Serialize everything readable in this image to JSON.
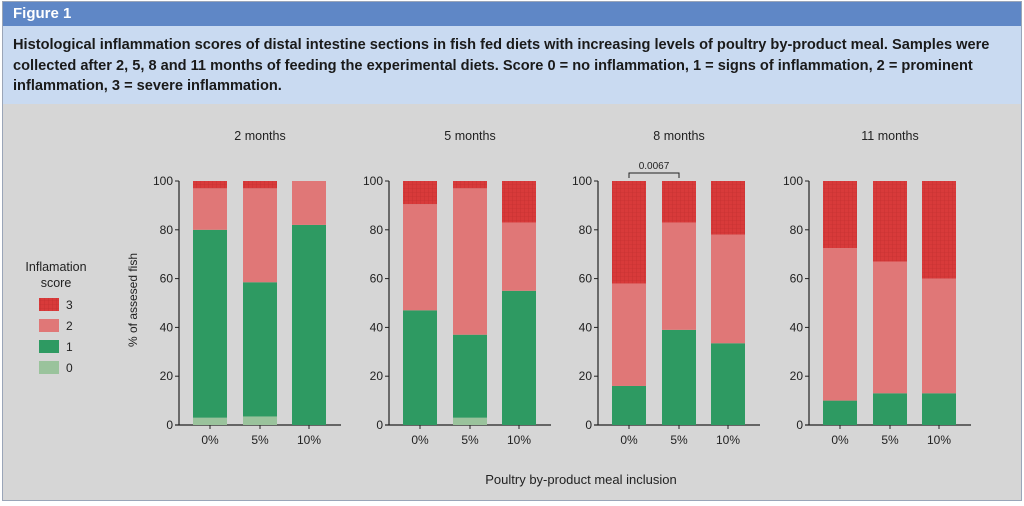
{
  "header": {
    "title": "Figure 1"
  },
  "caption": "Histological inflammation scores of distal intestine sections in fish fed diets with increasing levels of poultry by-product meal. Samples were collected after 2, 5, 8 and 11 months of feeding the experimental diets. Score 0 = no inflammation, 1 = signs of inflammation, 2 = prominent inflammation, 3 = severe inflammation.",
  "colors": {
    "score0": "#9ac39c",
    "score1": "#2e9a62",
    "score2": "#e07777",
    "score3": "#d83a3a",
    "axis": "#222222"
  },
  "legend": {
    "title_line1": "Inflamation",
    "title_line2": "score",
    "items": [
      {
        "label": "3",
        "key": "score3"
      },
      {
        "label": "2",
        "key": "score2"
      },
      {
        "label": "1",
        "key": "score1"
      },
      {
        "label": "0",
        "key": "score0"
      }
    ]
  },
  "chart_data": {
    "type": "bar",
    "stacked": true,
    "ylabel": "% of assesed fish",
    "xlabel": "Poultry by-product meal inclusion",
    "ylim": [
      0,
      100
    ],
    "yticks": [
      0,
      20,
      40,
      60,
      80,
      100
    ],
    "categories": [
      "0%",
      "5%",
      "10%"
    ],
    "series_names": [
      "0",
      "1",
      "2",
      "3"
    ],
    "panels": [
      {
        "title": "2 months",
        "series": [
          {
            "name": "0",
            "values": [
              3,
              3.5,
              0
            ]
          },
          {
            "name": "1",
            "values": [
              77,
              55,
              82
            ]
          },
          {
            "name": "2",
            "values": [
              17,
              38.5,
              18
            ]
          },
          {
            "name": "3",
            "values": [
              3,
              3,
              0
            ]
          }
        ]
      },
      {
        "title": "5 months",
        "series": [
          {
            "name": "0",
            "values": [
              0,
              3,
              0
            ]
          },
          {
            "name": "1",
            "values": [
              47,
              34,
              55
            ]
          },
          {
            "name": "2",
            "values": [
              43.5,
              60,
              28
            ]
          },
          {
            "name": "3",
            "values": [
              9.5,
              3,
              17
            ]
          }
        ]
      },
      {
        "title": "8 months",
        "annotation": {
          "text": "0.0067",
          "between": [
            "0%",
            "5%"
          ]
        },
        "series": [
          {
            "name": "0",
            "values": [
              0,
              0,
              0
            ]
          },
          {
            "name": "1",
            "values": [
              16,
              39,
              33.5
            ]
          },
          {
            "name": "2",
            "values": [
              42,
              44,
              44.5
            ]
          },
          {
            "name": "3",
            "values": [
              42,
              17,
              22
            ]
          }
        ]
      },
      {
        "title": "11 months",
        "series": [
          {
            "name": "0",
            "values": [
              0,
              0,
              0
            ]
          },
          {
            "name": "1",
            "values": [
              10,
              13,
              13
            ]
          },
          {
            "name": "2",
            "values": [
              62.5,
              54,
              47
            ]
          },
          {
            "name": "3",
            "values": [
              27.5,
              33,
              40
            ]
          }
        ]
      }
    ]
  }
}
